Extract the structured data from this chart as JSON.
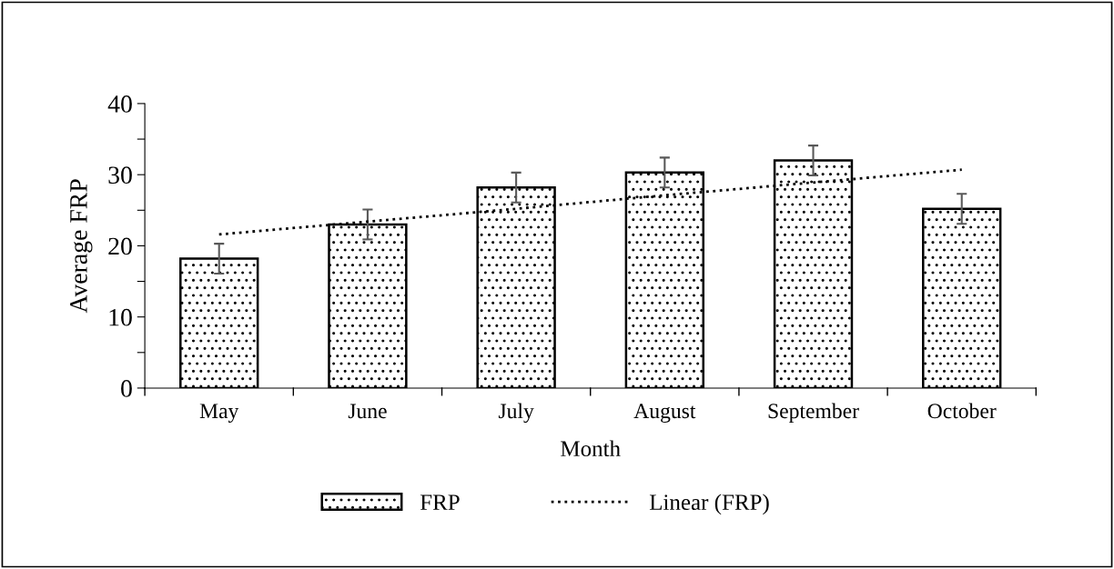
{
  "chart_data": {
    "type": "bar",
    "xlabel": "Month",
    "ylabel": "Average FRP",
    "categories": [
      "May",
      "June",
      "July",
      "August",
      "September",
      "October"
    ],
    "series": [
      {
        "name": "FRP",
        "color": "#000000",
        "values": [
          18.2,
          23.0,
          28.2,
          30.3,
          32.0,
          25.2
        ],
        "errors": [
          2.1,
          2.1,
          2.1,
          2.1,
          2.1,
          2.1
        ]
      },
      {
        "name": "Linear (FRP)",
        "type": "line",
        "color": "#000000",
        "line_style": "dotted",
        "values": [
          21.6,
          23.4,
          25.2,
          27.1,
          28.9,
          30.7
        ]
      }
    ],
    "ylim": [
      0,
      40
    ],
    "yticks": [
      0,
      {
        "value": 5,
        "label": null
      },
      10,
      {
        "value": 15,
        "label": null
      },
      20,
      {
        "value": 25,
        "label": null
      },
      30,
      {
        "value": 35,
        "label": null
      },
      40
    ],
    "grid": false,
    "legend": "bottom"
  }
}
